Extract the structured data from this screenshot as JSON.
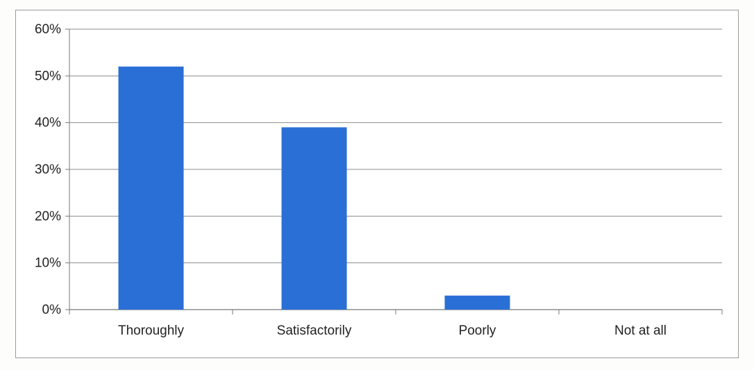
{
  "chart_data": {
    "type": "bar",
    "categories": [
      "Thoroughly",
      "Satisfactorily",
      "Poorly",
      "Not at all"
    ],
    "values": [
      52,
      39,
      3,
      0
    ],
    "ylim": [
      0,
      60
    ],
    "yticks": [
      0,
      10,
      20,
      30,
      40,
      50,
      60
    ],
    "ytick_labels": [
      "0%",
      "10%",
      "20%",
      "30%",
      "40%",
      "50%",
      "60%"
    ],
    "grid": true,
    "legend": "none",
    "bar_color": "#2a6fd6",
    "title": "",
    "xlabel": "",
    "ylabel": ""
  }
}
